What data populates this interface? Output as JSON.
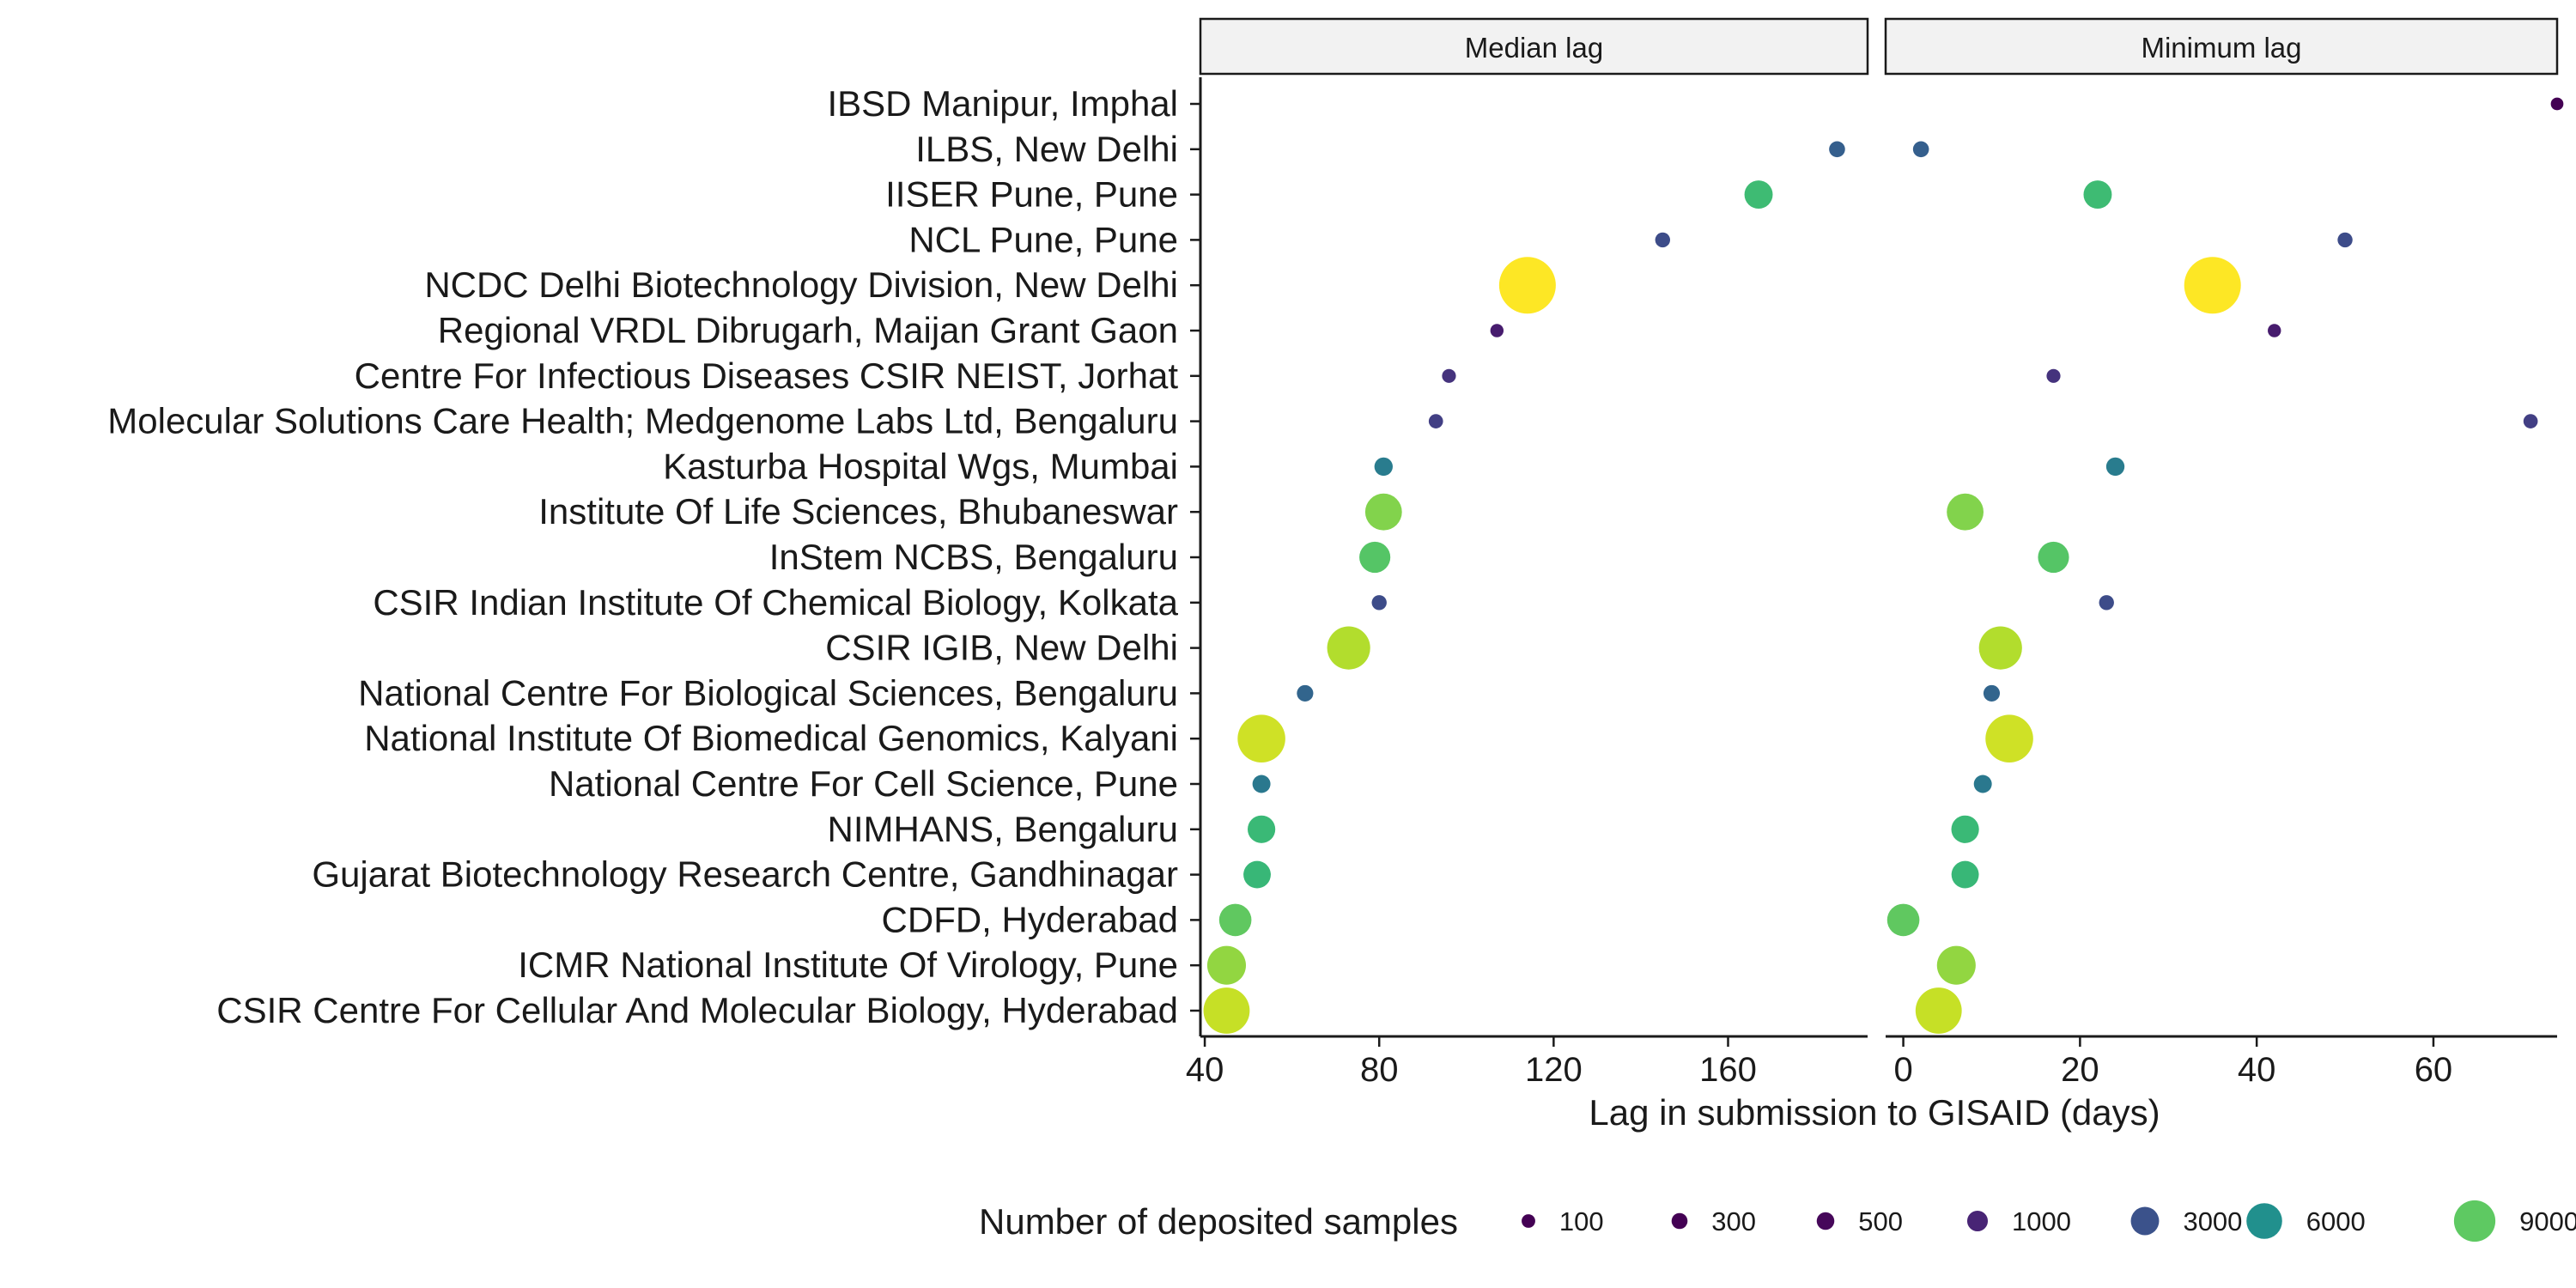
{
  "chart_data": {
    "type": "scatter",
    "xlabel": "Lag in submission to GISAID (days)",
    "legend": {
      "title": "Number of deposited samples",
      "placement": "bottom",
      "entries": [
        {
          "label": "100",
          "value": 100,
          "color": "#440154"
        },
        {
          "label": "300",
          "value": 300,
          "color": "#440154"
        },
        {
          "label": "500",
          "value": 500,
          "color": "#46075a"
        },
        {
          "label": "1000",
          "value": 1000,
          "color": "#482475"
        },
        {
          "label": "3000",
          "value": 3000,
          "color": "#3b528b"
        },
        {
          "label": "6000",
          "value": 6000,
          "color": "#21908d"
        },
        {
          "label": "9000",
          "value": 9000,
          "color": "#5ec962"
        }
      ]
    },
    "categories": [
      "IBSD Manipur, Imphal",
      "ILBS, New Delhi",
      "IISER Pune, Pune",
      "NCL Pune, Pune",
      "NCDC Delhi Biotechnology Division, New Delhi",
      "Regional VRDL Dibrugarh, Maijan Grant Gaon",
      "Centre For Infectious Diseases CSIR NEIST, Jorhat",
      "Molecular Solutions Care Health; Medgenome Labs Ltd, Bengaluru",
      "Kasturba Hospital Wgs, Mumbai",
      "Institute Of Life Sciences, Bhubaneswar",
      "InStem NCBS, Bengaluru",
      "CSIR Indian Institute Of Chemical Biology, Kolkata",
      "CSIR IGIB, New Delhi",
      "National Centre For Biological Sciences, Bengaluru",
      "National Institute Of Biomedical Genomics, Kalyani",
      "National Centre For Cell Science, Pune",
      "NIMHANS, Bengaluru",
      "Gujarat Biotechnology Research Centre, Gandhinagar",
      "CDFD, Hyderabad",
      "ICMR National Institute Of Virology, Pune",
      "CSIR Centre For Cellular And Molecular Biology, Hyderabad"
    ],
    "samples": [
      50,
      300,
      3000,
      200,
      20000,
      80,
      120,
      150,
      600,
      6500,
      4000,
      200,
      10000,
      350,
      13000,
      550,
      2800,
      2700,
      4500,
      7500,
      12000
    ],
    "panels": [
      {
        "title": "Median lag",
        "xlim": [
          39,
          192
        ],
        "ticks": [
          40,
          80,
          120,
          160
        ],
        "values": [
          null,
          185,
          167,
          145,
          114,
          107,
          96,
          93,
          81,
          81,
          79,
          80,
          73,
          63,
          53,
          53,
          53,
          52,
          47,
          45,
          45
        ]
      },
      {
        "title": "Minimum lag",
        "xlim": [
          -2,
          74
        ],
        "ticks": [
          0,
          20,
          40,
          60
        ],
        "values": [
          74,
          2,
          22,
          50,
          35,
          42,
          17,
          71,
          24,
          7,
          17,
          23,
          11,
          10,
          12,
          9,
          7,
          7,
          0,
          6,
          4
        ]
      }
    ],
    "grid": false
  }
}
